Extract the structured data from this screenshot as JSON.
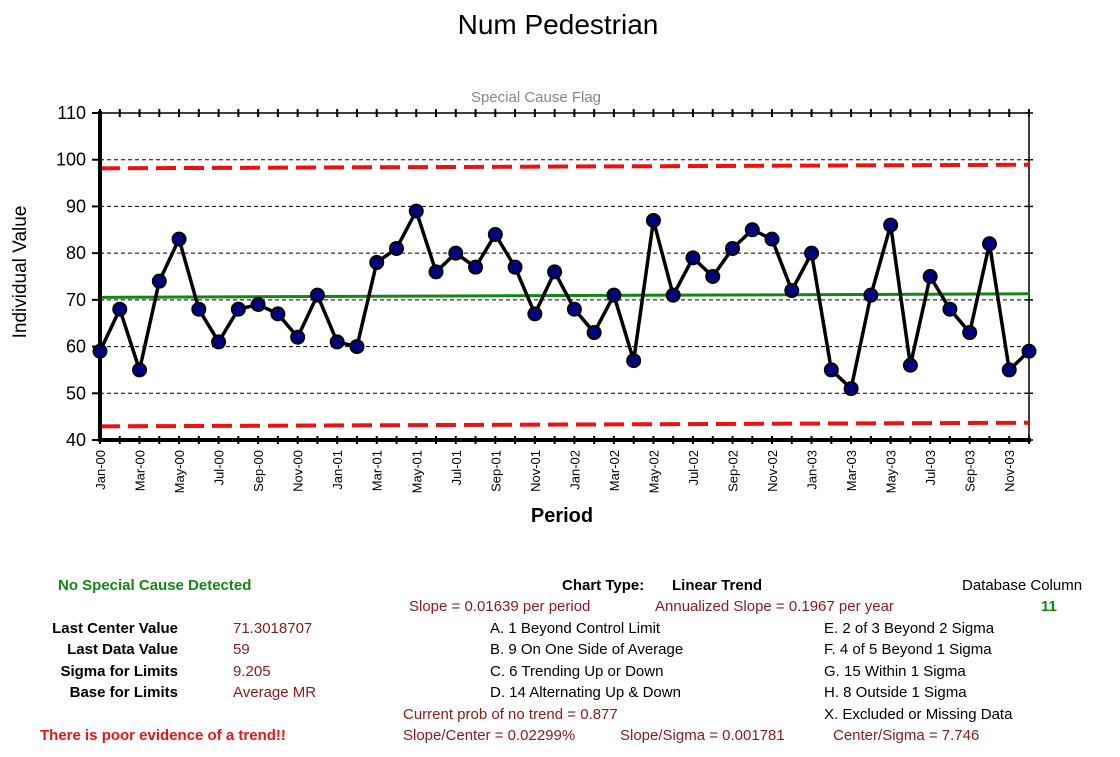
{
  "chart_data": {
    "type": "line",
    "title": "Num Pedestrian",
    "subtitle": "Special Cause Flag",
    "xlabel": "Period",
    "ylabel": "Individual Value",
    "ylim": [
      40,
      110
    ],
    "y_ticks": [
      40,
      50,
      60,
      70,
      80,
      90,
      100,
      110
    ],
    "grid": "horizontal dashed",
    "x": [
      "Jan-00",
      "Feb-00",
      "Mar-00",
      "Apr-00",
      "May-00",
      "Jun-00",
      "Jul-00",
      "Aug-00",
      "Sep-00",
      "Oct-00",
      "Nov-00",
      "Dec-00",
      "Jan-01",
      "Feb-01",
      "Mar-01",
      "Apr-01",
      "May-01",
      "Jun-01",
      "Jul-01",
      "Aug-01",
      "Sep-01",
      "Oct-01",
      "Nov-01",
      "Dec-01",
      "Jan-02",
      "Feb-02",
      "Mar-02",
      "Apr-02",
      "May-02",
      "Jun-02",
      "Jul-02",
      "Aug-02",
      "Sep-02",
      "Oct-02",
      "Nov-02",
      "Dec-02",
      "Jan-03",
      "Feb-03",
      "Mar-03",
      "Apr-03",
      "May-03",
      "Jun-03",
      "Jul-03",
      "Aug-03",
      "Sep-03",
      "Oct-03",
      "Nov-03",
      "Dec-03"
    ],
    "x_tick_labels": [
      "Jan-00",
      "Mar-00",
      "May-00",
      "Jul-00",
      "Sep-00",
      "Nov-00",
      "Jan-01",
      "Mar-01",
      "May-01",
      "Jul-01",
      "Sep-01",
      "Nov-01",
      "Jan-02",
      "Mar-02",
      "May-02",
      "Jul-02",
      "Sep-02",
      "Nov-02",
      "Jan-03",
      "Mar-03",
      "May-03",
      "Jul-03",
      "Sep-03",
      "Nov-03"
    ],
    "series": [
      {
        "values": [
          59,
          68,
          55,
          74,
          83,
          68,
          61,
          68,
          69,
          67,
          62,
          71,
          61,
          60,
          78,
          81,
          89,
          76,
          80,
          77,
          84,
          77,
          67,
          76,
          68,
          63,
          71,
          57,
          87,
          71,
          79,
          75,
          81,
          85,
          83,
          72,
          80,
          55,
          51,
          71,
          86,
          56,
          75,
          68,
          63,
          82,
          55,
          59
        ],
        "color": "#000000",
        "marker_color": "#000080"
      }
    ],
    "center_line": {
      "start": 70.53,
      "end": 71.3,
      "color": "#118811"
    },
    "upper_limit": {
      "start": 98.15,
      "end": 98.92,
      "color": "#ee1111"
    },
    "lower_limit": {
      "start": 42.92,
      "end": 43.69,
      "color": "#ee1111"
    }
  },
  "info": {
    "no_special_cause": "No Special Cause Detected",
    "poor_evidence": "There is poor evidence of a trend!!",
    "stats": [
      {
        "label": "Last Center Value",
        "value": "71.3018707"
      },
      {
        "label": "Last Data Value",
        "value": "59"
      },
      {
        "label": "Sigma for Limits",
        "value": "9.205"
      },
      {
        "label": "Base for Limits",
        "value": "Average MR"
      }
    ],
    "chart_type_label": "Chart Type:",
    "chart_type_value": "Linear Trend",
    "slope": "Slope = 0.01639 per period",
    "annualized_slope": "Annualized Slope = 0.1967 per year",
    "rules_left": [
      "A.  1 Beyond Control Limit",
      "B.  9 On One Side of Average",
      "C.  6 Trending Up or Down",
      "D.  14 Alternating  Up & Down"
    ],
    "rules_right": [
      "E.  2 of 3 Beyond 2 Sigma",
      "F.  4 of 5 Beyond 1 Sigma",
      "G.  15 Within 1 Sigma",
      "H.  8 Outside 1 Sigma",
      "X.  Excluded or Missing Data"
    ],
    "prob_no_trend": "Current prob of no trend = 0.877",
    "slope_center": "Slope/Center = 0.02299%",
    "slope_sigma": "Slope/Sigma = 0.001781",
    "center_sigma": "Center/Sigma = 7.746",
    "database_column_label": "Database Column",
    "database_column_value": "11"
  }
}
